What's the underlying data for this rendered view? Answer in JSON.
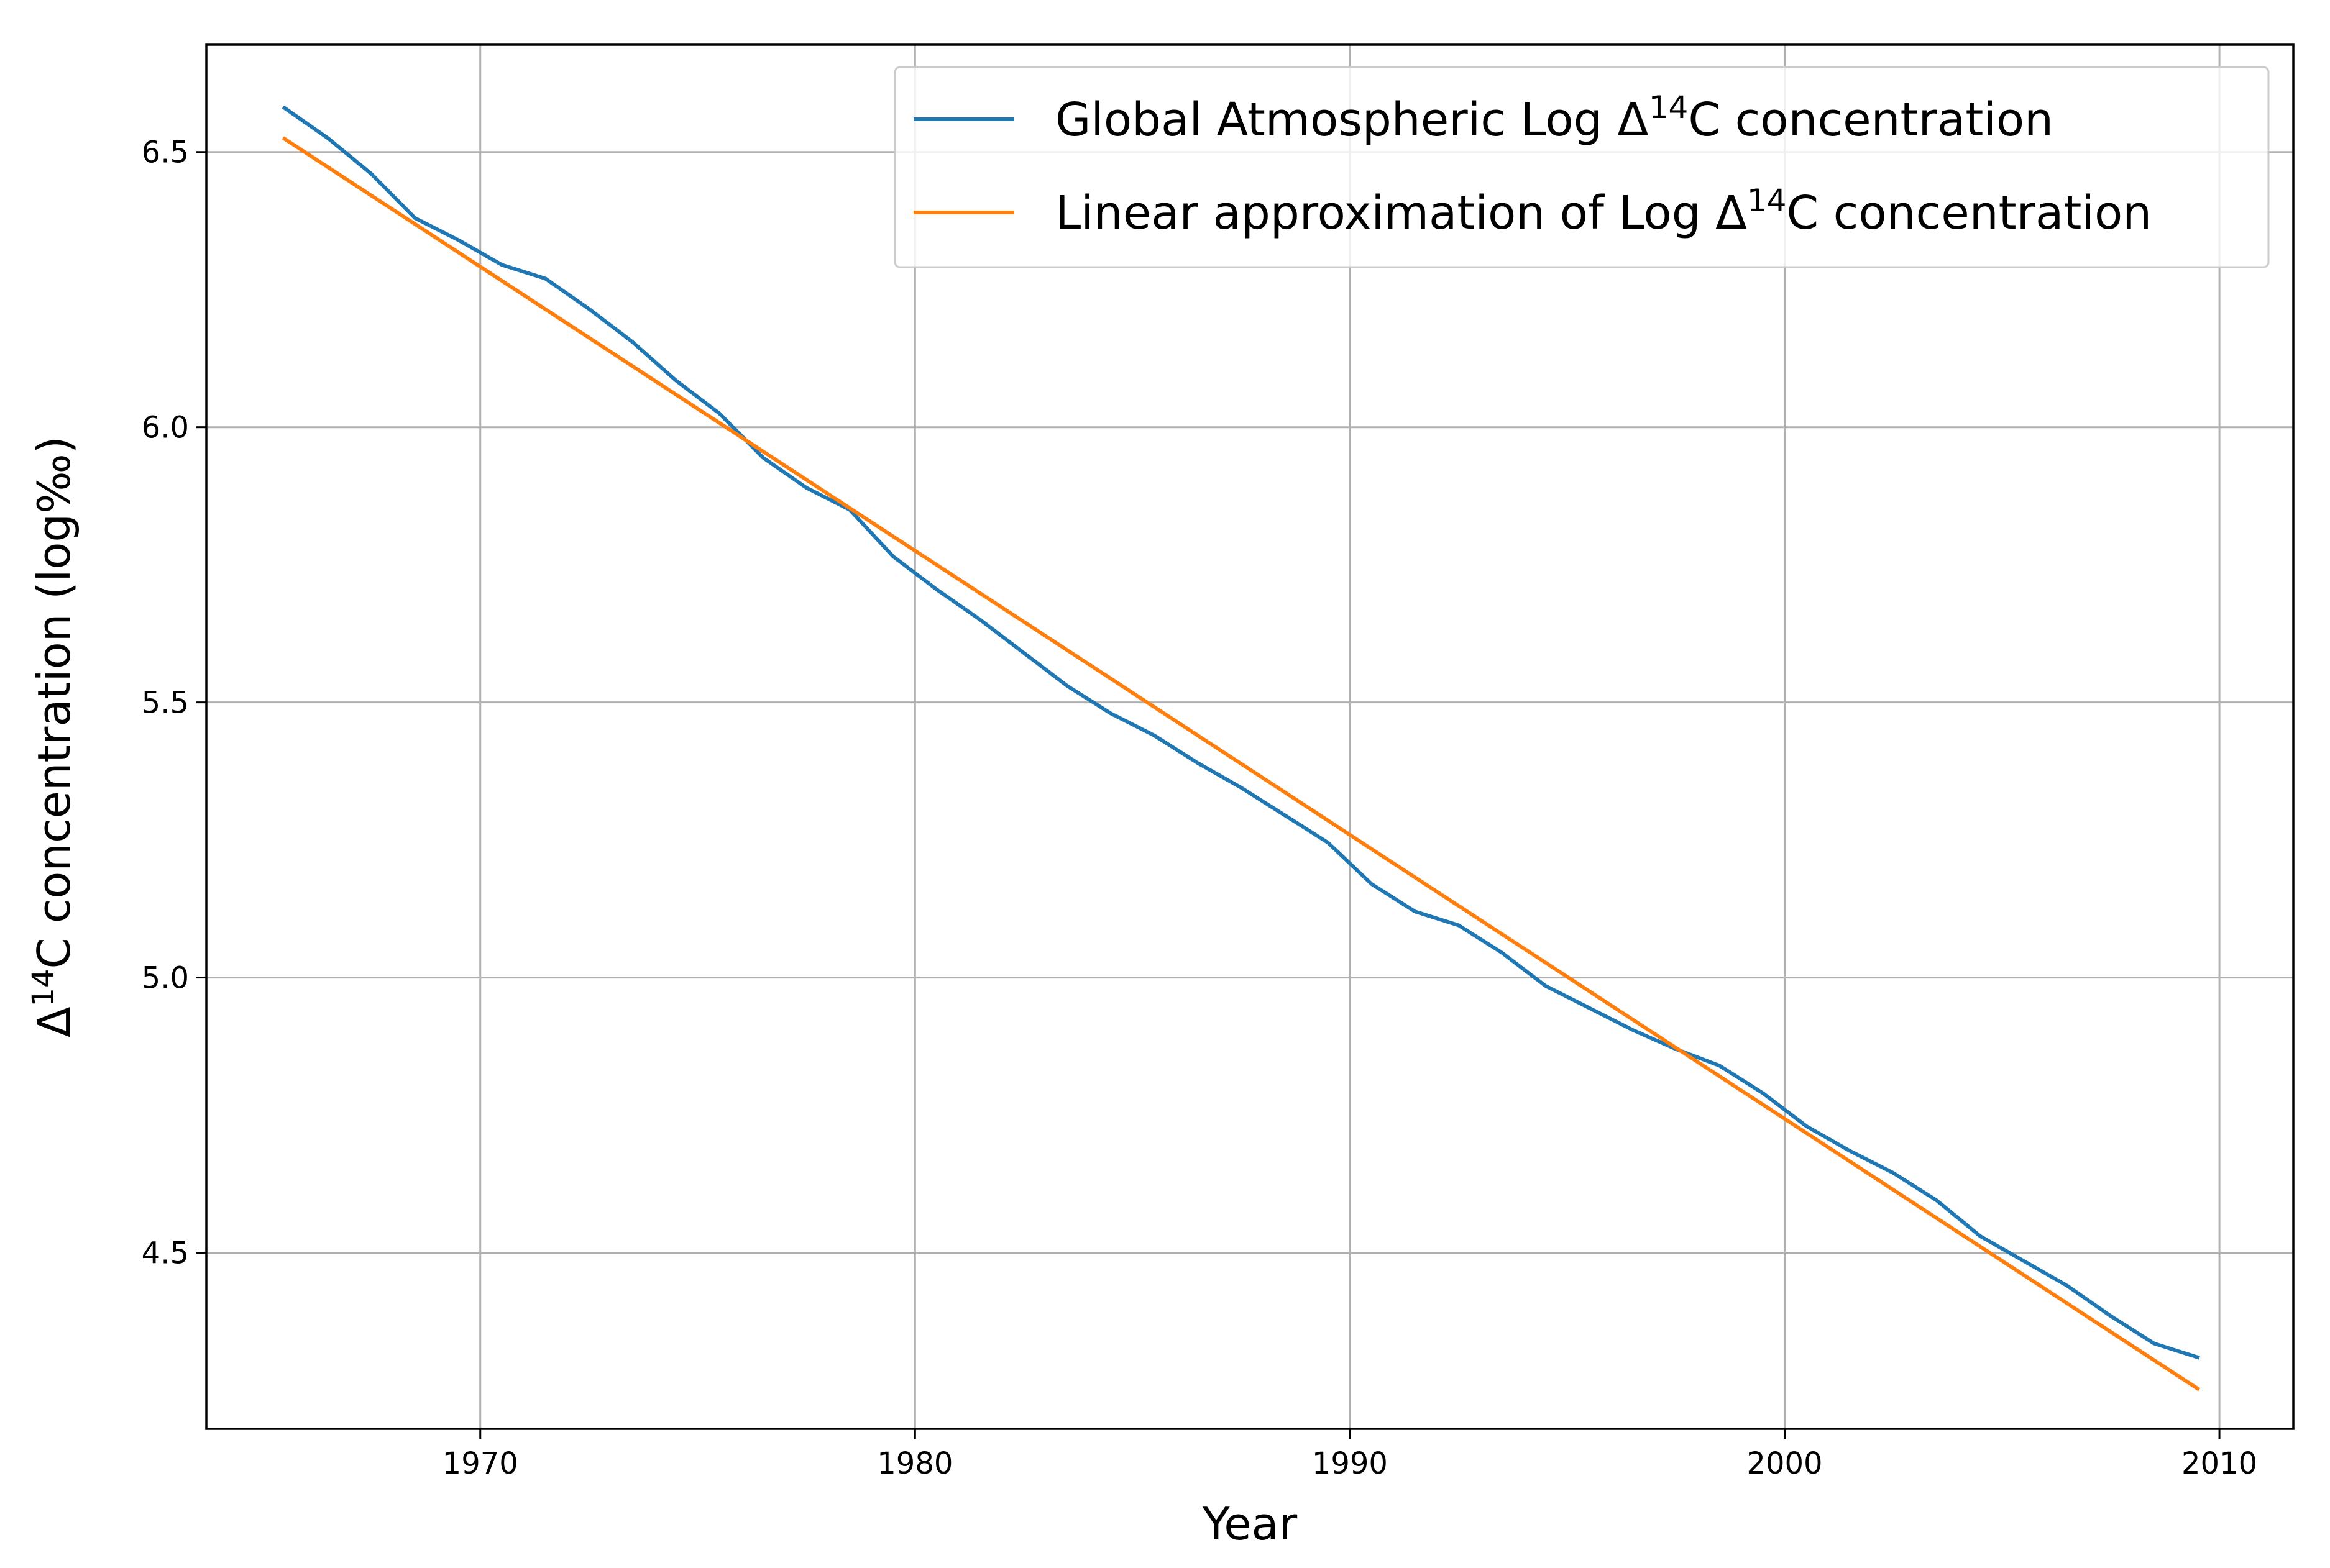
{
  "chart_data": {
    "type": "line",
    "title": "",
    "xlabel": "Year",
    "ylabel_parts": {
      "pre": "Δ",
      "sup": "14",
      "post": "C concentration (log‰)"
    },
    "xlim": [
      1963.7,
      2011.7
    ],
    "ylim": [
      4.18,
      6.695
    ],
    "x_ticks": [
      1970,
      1980,
      1990,
      2000,
      2010
    ],
    "x_tick_labels": [
      "1970",
      "1980",
      "1990",
      "2000",
      "2010"
    ],
    "y_ticks": [
      4.5,
      5.0,
      5.5,
      6.0,
      6.5
    ],
    "y_tick_labels": [
      "4.5",
      "5.0",
      "5.5",
      "6.0",
      "6.5"
    ],
    "grid": true,
    "legend_position": "top-right",
    "series": [
      {
        "legend_parts": {
          "pre": "Global Atmospheric Log Δ",
          "sup": "14",
          "post": "C concentration"
        },
        "color": "#1f77b4",
        "x": [
          1965.5,
          1966.5,
          1967.5,
          1968.5,
          1969.5,
          1970.5,
          1971.5,
          1972.5,
          1973.5,
          1974.5,
          1975.5,
          1976.5,
          1977.5,
          1978.5,
          1979.5,
          1980.5,
          1981.5,
          1982.5,
          1983.5,
          1984.5,
          1985.5,
          1986.5,
          1987.5,
          1988.5,
          1989.5,
          1990.5,
          1991.5,
          1992.5,
          1993.5,
          1994.5,
          1995.5,
          1996.5,
          1997.5,
          1998.5,
          1999.5,
          2000.5,
          2001.5,
          2002.5,
          2003.5,
          2004.5,
          2005.5,
          2006.5,
          2007.5,
          2008.5,
          2009.5
        ],
        "y": [
          6.58,
          6.525,
          6.46,
          6.38,
          6.34,
          6.295,
          6.27,
          6.215,
          6.155,
          6.085,
          6.025,
          5.945,
          5.89,
          5.85,
          5.765,
          5.705,
          5.65,
          5.59,
          5.53,
          5.48,
          5.44,
          5.39,
          5.345,
          5.295,
          5.245,
          5.17,
          5.12,
          5.095,
          5.045,
          4.985,
          4.945,
          4.905,
          4.87,
          4.84,
          4.79,
          4.73,
          4.685,
          4.645,
          4.595,
          4.53,
          4.485,
          4.44,
          4.385,
          4.335,
          4.31
        ]
      },
      {
        "legend_parts": {
          "pre": "Linear approximation of Log Δ",
          "sup": "14",
          "post": "C concentration"
        },
        "color": "#ff7f0e",
        "x": [
          1965.5,
          2009.5
        ],
        "y": [
          6.524,
          4.253
        ]
      }
    ]
  }
}
